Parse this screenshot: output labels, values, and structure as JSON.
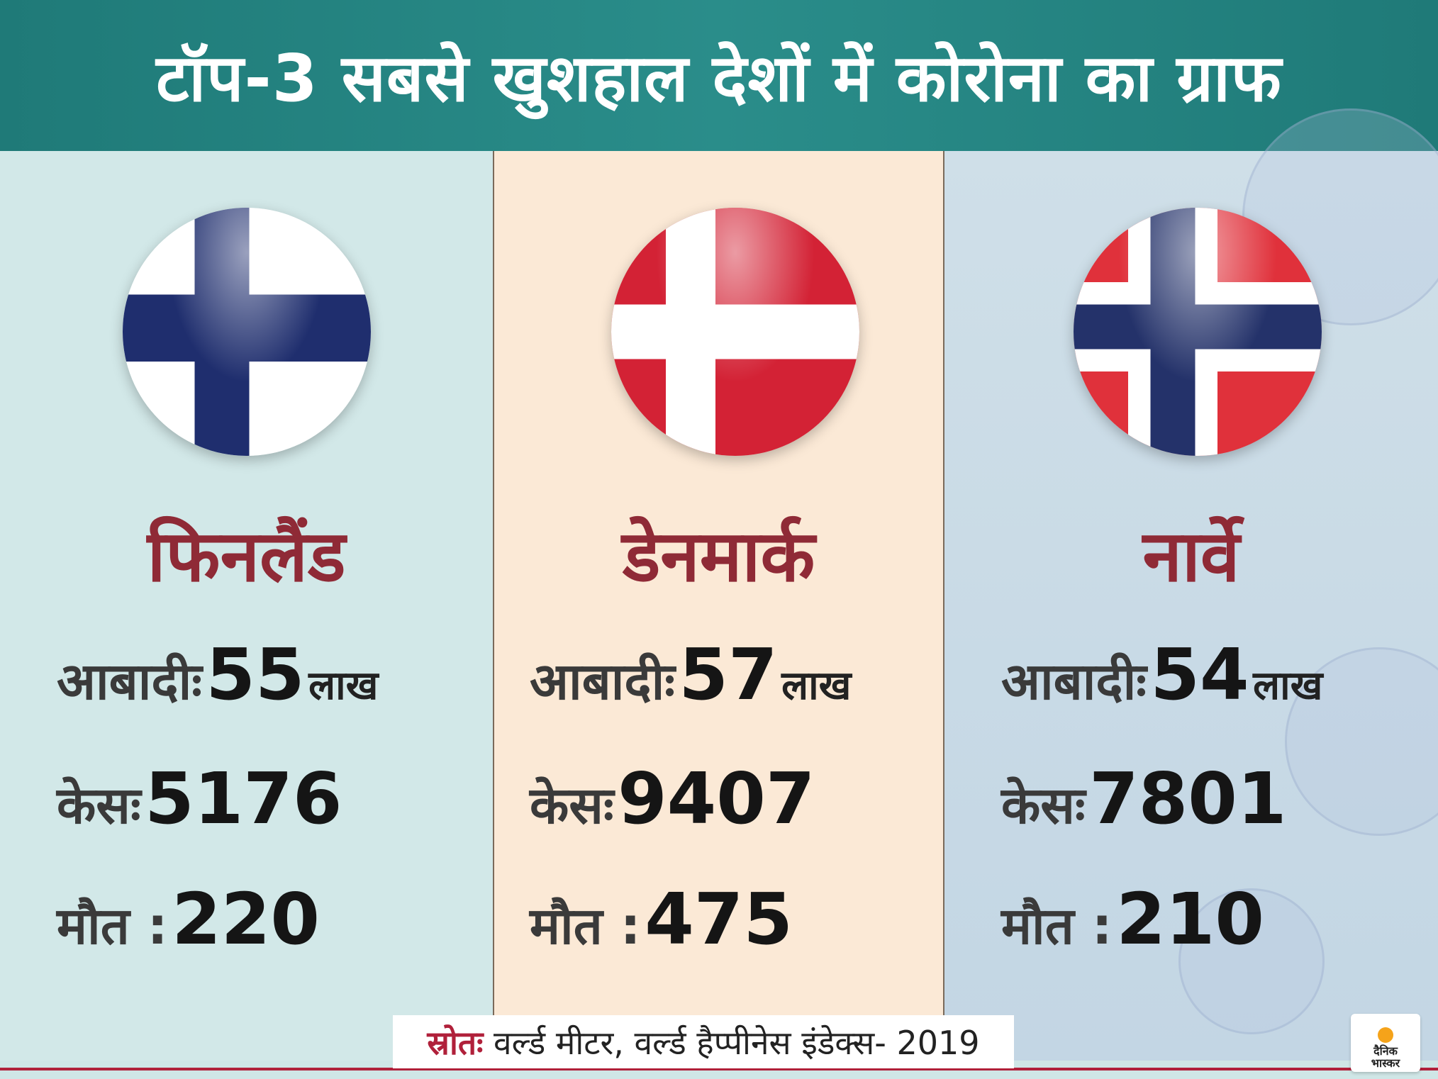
{
  "title": "टॉप-3 सबसे खुशहाल देशों में कोरोना का ग्राफ",
  "countries": [
    {
      "name": "फिनलैंड",
      "flag_icon": "finland-flag-icon",
      "population_label": "आबादीः",
      "population_value": "55",
      "population_unit": "लाख",
      "cases_label": "केसः",
      "cases_value": "5176",
      "deaths_label": "मौत :",
      "deaths_value": "220"
    },
    {
      "name": "डेनमार्क",
      "flag_icon": "denmark-flag-icon",
      "population_label": "आबादीः",
      "population_value": "57",
      "population_unit": "लाख",
      "cases_label": "केसः",
      "cases_value": "9407",
      "deaths_label": "मौत :",
      "deaths_value": "475"
    },
    {
      "name": "नार्वे",
      "flag_icon": "norway-flag-icon",
      "population_label": "आबादीः",
      "population_value": "54",
      "population_unit": "लाख",
      "cases_label": "केसः",
      "cases_value": "7801",
      "deaths_label": "मौत :",
      "deaths_value": "210"
    }
  ],
  "source": {
    "label": "स्रोतः",
    "text": " वर्ल्ड मीटर, वर्ल्ड हैप्पीनेस इंडेक्स- 2019"
  },
  "logo": {
    "line1": "दैनिक",
    "line2": "भास्कर"
  },
  "colors": {
    "header": "#1f7a78",
    "country_name": "#8f2a36",
    "source_label": "#b0203a",
    "accent_line": "#b0203a"
  }
}
